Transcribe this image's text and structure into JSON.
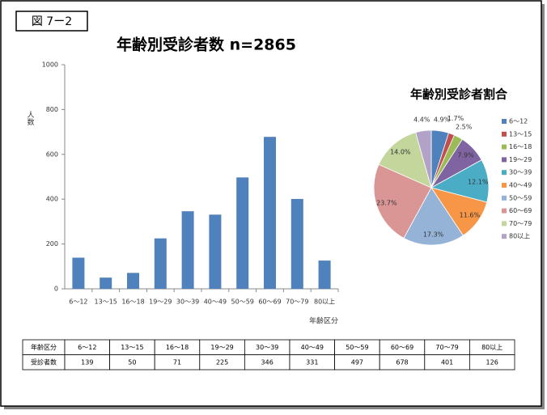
{
  "figure_label": "図 7ー2",
  "chart_data": [
    {
      "type": "bar",
      "title": "年齢別受診者数 n=2865",
      "y_label": "人数",
      "x_label": "年齢区分",
      "categories": [
        "6～12",
        "13～15",
        "16～18",
        "19～29",
        "30～39",
        "40～49",
        "50～59",
        "60～69",
        "70～79",
        "80以上"
      ],
      "values": [
        139,
        50,
        71,
        225,
        346,
        331,
        497,
        678,
        401,
        126
      ],
      "color": "#4f81bd",
      "ylim": [
        0,
        1000
      ],
      "yticks": [
        0,
        200,
        400,
        600,
        800,
        1000
      ],
      "grid": false
    },
    {
      "type": "pie",
      "title": "年齢別受診者割合",
      "categories": [
        "6～12",
        "13～15",
        "16～18",
        "19～29",
        "30～39",
        "40～49",
        "50～59",
        "60～69",
        "70～79",
        "80以上"
      ],
      "values": [
        4.9,
        1.7,
        2.5,
        7.9,
        12.1,
        11.6,
        17.3,
        23.7,
        14.0,
        4.4
      ],
      "value_labels": [
        "4.9%",
        "1.7%",
        "2.5%",
        "7.9%",
        "12.1%",
        "11.6%",
        "17.3%",
        "23.7%",
        "14.0%",
        "4.4%"
      ],
      "colors": [
        "#4f81bd",
        "#c0504d",
        "#9bbb59",
        "#8064a2",
        "#4bacc6",
        "#f79646",
        "#95b3d7",
        "#d99694",
        "#c3d69b",
        "#b3a2c7"
      ],
      "legend": "right"
    }
  ],
  "table": {
    "rows": [
      [
        "年齢区分",
        "6～12",
        "13～15",
        "16～18",
        "19～29",
        "30～39",
        "40～49",
        "50～59",
        "60～69",
        "70～79",
        "80以上"
      ],
      [
        "受診者数",
        139,
        50,
        71,
        225,
        346,
        331,
        497,
        678,
        401,
        126
      ]
    ]
  }
}
